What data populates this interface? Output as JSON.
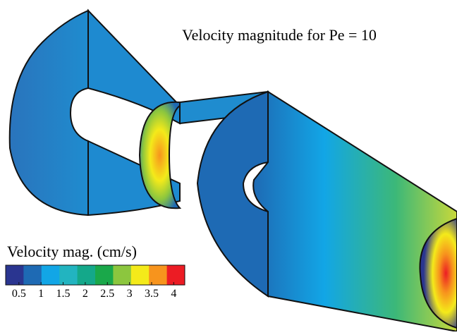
{
  "figure": {
    "title": "Velocity magnitude for Pe = 10",
    "colorbar": {
      "label": "Velocity mag. (cm/s)",
      "lim": [
        0.2,
        4.25
      ],
      "ticks": [
        0.5,
        1,
        1.5,
        2,
        2.5,
        3,
        3.5,
        4
      ],
      "colors": [
        "#2a3590",
        "#1e6ab4",
        "#12a6e6",
        "#22b4c0",
        "#14a88a",
        "#1aa84a",
        "#8cc63e",
        "#f4ea1a",
        "#f7941d",
        "#ec1c24"
      ]
    }
  }
}
